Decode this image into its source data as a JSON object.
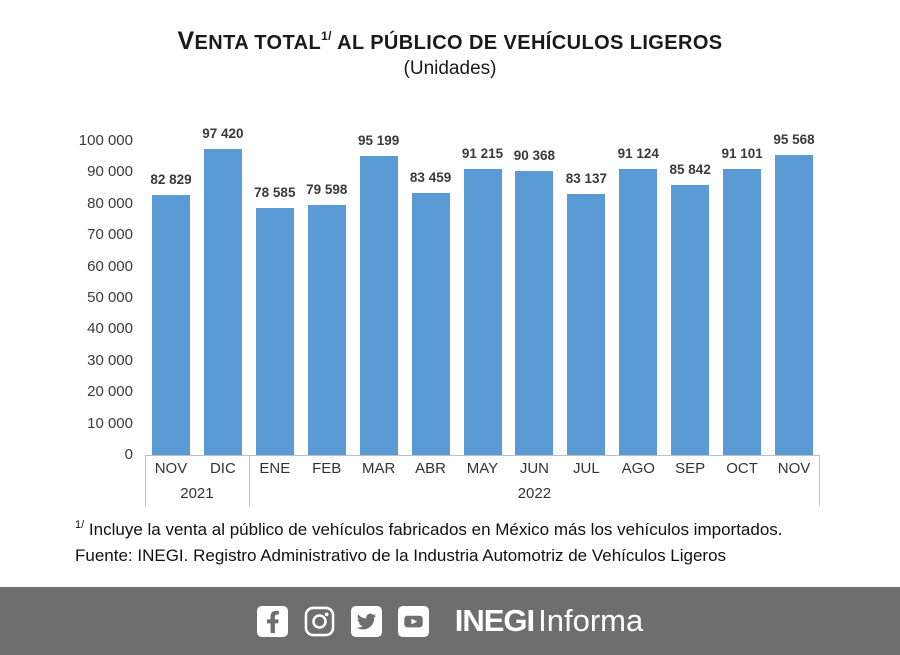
{
  "title": {
    "initial": "V",
    "rest": "ENTA TOTAL",
    "superscript": "1/",
    "tail": " AL PÚBLICO DE VEHÍCULOS LIGEROS",
    "subtitle": "(Unidades)"
  },
  "chart_data": {
    "type": "bar",
    "title": "Venta total al público de vehículos ligeros",
    "subtitle": "(Unidades)",
    "categories": [
      "NOV",
      "DIC",
      "ENE",
      "FEB",
      "MAR",
      "ABR",
      "MAY",
      "JUN",
      "JUL",
      "AGO",
      "SEP",
      "OCT",
      "NOV"
    ],
    "values": [
      82829,
      97420,
      78585,
      79598,
      95199,
      83459,
      91215,
      90368,
      83137,
      91124,
      85842,
      91101,
      95568
    ],
    "value_labels": [
      "82 829",
      "97 420",
      "78 585",
      "79 598",
      "95 199",
      "83 459",
      "91 215",
      "90 368",
      "83 137",
      "91 124",
      "85 842",
      "91 101",
      "95 568"
    ],
    "year_groups": [
      {
        "label": "2021",
        "span": 2
      },
      {
        "label": "2022",
        "span": 11
      }
    ],
    "xlabel": "",
    "ylabel": "",
    "ylim": [
      0,
      100000
    ],
    "ytick_interval": 10000,
    "ytick_labels": [
      "0",
      "10 000",
      "20 000",
      "30 000",
      "40 000",
      "50 000",
      "60 000",
      "70 000",
      "80 000",
      "90 000",
      "100 000"
    ],
    "bar_color": "#5B9BD5",
    "grid": false,
    "legend": "none"
  },
  "footnotes": {
    "line1_sup": "1/",
    "line1_text": " Incluye la venta al público de vehículos fabricados en México más los vehículos importados.",
    "line2": "Fuente: INEGI. Registro Administrativo de la Industria Automotriz de Vehículos Ligeros"
  },
  "footer": {
    "background": "#6d6e6d",
    "icon_names": [
      "facebook-icon",
      "instagram-icon",
      "twitter-icon",
      "youtube-icon"
    ],
    "brand_bold": "INEGI",
    "brand_light": "Informa"
  }
}
